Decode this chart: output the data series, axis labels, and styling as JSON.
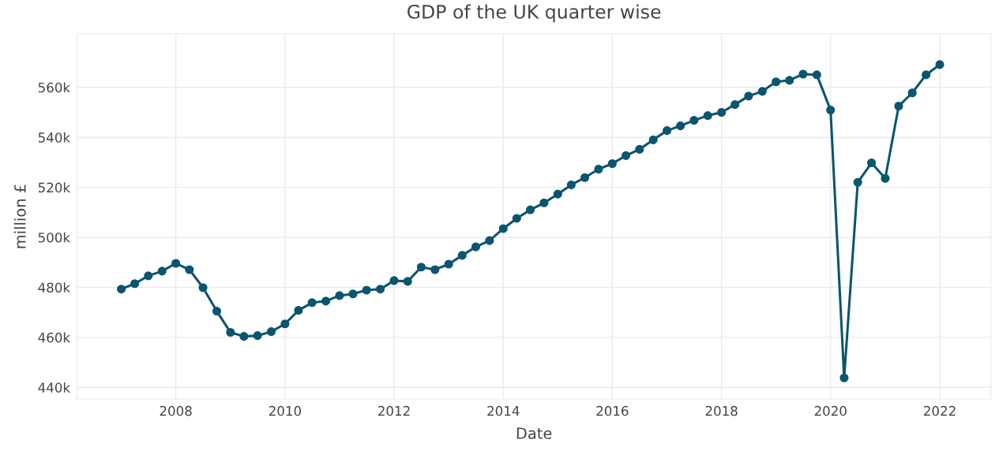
{
  "chart_data": {
    "type": "line",
    "title": "GDP of the UK quarter wise",
    "xlabel": "Date",
    "ylabel": "million £",
    "x": [
      "2007-01-01",
      "2007-04-01",
      "2007-07-01",
      "2007-10-01",
      "2008-01-01",
      "2008-04-01",
      "2008-07-01",
      "2008-10-01",
      "2009-01-01",
      "2009-04-01",
      "2009-07-01",
      "2009-10-01",
      "2010-01-01",
      "2010-04-01",
      "2010-07-01",
      "2010-10-01",
      "2011-01-01",
      "2011-04-01",
      "2011-07-01",
      "2011-10-01",
      "2012-01-01",
      "2012-04-01",
      "2012-07-01",
      "2012-10-01",
      "2013-01-01",
      "2013-04-01",
      "2013-07-01",
      "2013-10-01",
      "2014-01-01",
      "2014-04-01",
      "2014-07-01",
      "2014-10-01",
      "2015-01-01",
      "2015-04-01",
      "2015-07-01",
      "2015-10-01",
      "2016-01-01",
      "2016-04-01",
      "2016-07-01",
      "2016-10-01",
      "2017-01-01",
      "2017-04-01",
      "2017-07-01",
      "2017-10-01",
      "2018-01-01",
      "2018-04-01",
      "2018-07-01",
      "2018-10-01",
      "2019-01-01",
      "2019-04-01",
      "2019-07-01",
      "2019-10-01",
      "2020-01-01",
      "2020-04-01",
      "2020-07-01",
      "2020-10-01",
      "2021-01-01",
      "2021-04-01",
      "2021-07-01",
      "2021-10-01",
      "2022-01-01"
    ],
    "series": [
      {
        "color": "#0b5570",
        "values": [
          479300,
          481500,
          484600,
          486500,
          489600,
          487100,
          479900,
          470500,
          462000,
          460400,
          460700,
          462300,
          465400,
          470800,
          473900,
          474500,
          476700,
          477400,
          478900,
          479300,
          482700,
          482400,
          488100,
          487100,
          489300,
          492800,
          496200,
          498700,
          503500,
          507600,
          511000,
          513800,
          517300,
          521000,
          523900,
          527300,
          529500,
          532700,
          535200,
          539000,
          542700,
          544600,
          546800,
          548700,
          550000,
          553100,
          556500,
          558400,
          562200,
          562800,
          565300,
          565000,
          550900,
          443800,
          522000,
          529800,
          523600,
          552500,
          557800,
          565000,
          569100
        ]
      }
    ],
    "xlim": [
      "2006-03-10",
      "2022-12-10"
    ],
    "xticks": [
      "2008",
      "2010",
      "2012",
      "2014",
      "2016",
      "2018",
      "2020",
      "2022"
    ],
    "ylim": [
      435300,
      581400
    ],
    "yticks": [
      {
        "value": 440000,
        "label": "440k"
      },
      {
        "value": 460000,
        "label": "460k"
      },
      {
        "value": 480000,
        "label": "480k"
      },
      {
        "value": 500000,
        "label": "500k"
      },
      {
        "value": 520000,
        "label": "520k"
      },
      {
        "value": 540000,
        "label": "540k"
      },
      {
        "value": 560000,
        "label": "560k"
      }
    ],
    "grid": true,
    "marker": "circle",
    "line_style": "solid"
  }
}
